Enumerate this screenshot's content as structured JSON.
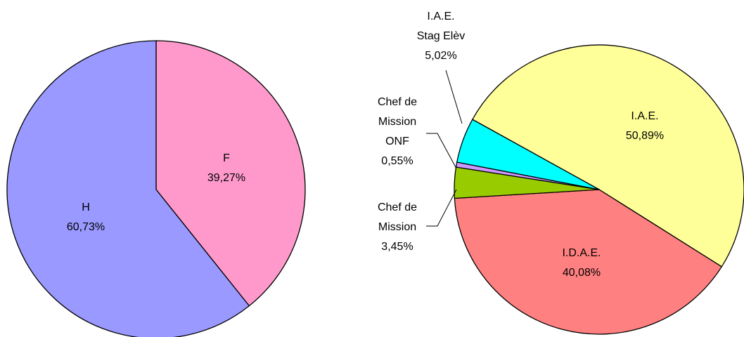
{
  "chart_data": [
    {
      "type": "pie",
      "categories": [
        "F",
        "H"
      ],
      "values": [
        39.27,
        60.73
      ],
      "value_labels": [
        "39,27%",
        "60,73%"
      ],
      "colors": [
        "#ff99cc",
        "#9999ff"
      ]
    },
    {
      "type": "pie",
      "categories": [
        "I.A.E.",
        "I.D.A.E.",
        "Chef de\nMission",
        "Chef de\nMission\nONF",
        "I.A.E.\nStag Elèv"
      ],
      "values": [
        50.89,
        40.08,
        3.45,
        0.55,
        5.02
      ],
      "value_labels": [
        "50,89%",
        "40,08%",
        "3,45%",
        "0,55%",
        "5,02%"
      ],
      "colors": [
        "#ffff99",
        "#ff8080",
        "#99cc00",
        "#cc99ff",
        "#00ffff"
      ]
    }
  ]
}
